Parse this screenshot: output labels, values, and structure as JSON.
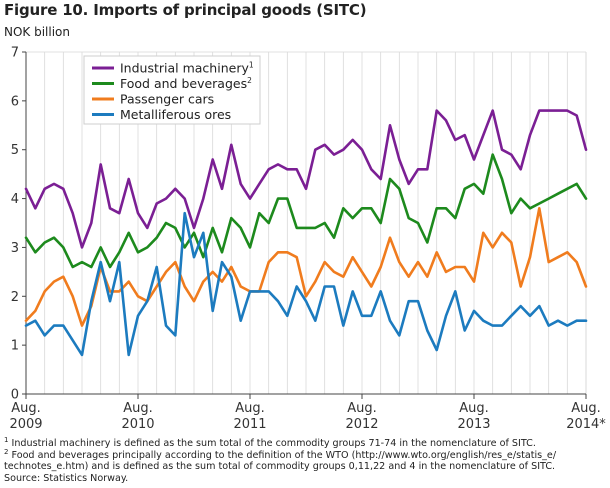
{
  "figure": {
    "title": "Figure 10. Imports of principal goods (SITC)",
    "unit_label": "NOK billion"
  },
  "chart_data": {
    "type": "line",
    "title": "Figure 10. Imports of principal goods (SITC)",
    "ylabel": "NOK billion",
    "xlabel": "",
    "ylim": [
      0,
      7
    ],
    "yticks": [
      0,
      1,
      2,
      3,
      4,
      5,
      6,
      7
    ],
    "grid": "vertical",
    "legend_position": "top-left",
    "x_count": 61,
    "x_ticks": [
      {
        "index": 0,
        "month": "Aug.",
        "year": "2009"
      },
      {
        "index": 12,
        "month": "Aug.",
        "year": "2010"
      },
      {
        "index": 24,
        "month": "Aug.",
        "year": "2011"
      },
      {
        "index": 36,
        "month": "Aug.",
        "year": "2012"
      },
      {
        "index": 48,
        "month": "Aug.",
        "year": "2013"
      },
      {
        "index": 60,
        "month": "Aug.",
        "year": "2014*"
      }
    ],
    "series": [
      {
        "name": "Industrial machinery",
        "footnote": "1",
        "color": "#7b1f94",
        "values": [
          4.2,
          3.8,
          4.2,
          4.3,
          4.2,
          3.7,
          3.0,
          3.5,
          4.7,
          3.8,
          3.7,
          4.4,
          3.7,
          3.4,
          3.9,
          4.0,
          4.2,
          4.0,
          3.4,
          4.0,
          4.8,
          4.2,
          5.1,
          4.3,
          4.0,
          4.3,
          4.6,
          4.7,
          4.6,
          4.6,
          4.2,
          5.0,
          5.1,
          4.9,
          5.0,
          5.2,
          5.0,
          4.6,
          4.4,
          5.5,
          4.8,
          4.3,
          4.6,
          4.6,
          5.8,
          5.6,
          5.2,
          5.3,
          4.8,
          5.3,
          5.8,
          5.0,
          4.9,
          4.6,
          5.3,
          5.8,
          5.8,
          5.8,
          5.8,
          5.7,
          5.0
        ]
      },
      {
        "name": "Food and beverages",
        "footnote": "2",
        "color": "#1d8a1d",
        "values": [
          3.2,
          2.9,
          3.1,
          3.2,
          3.0,
          2.6,
          2.7,
          2.6,
          3.0,
          2.6,
          2.9,
          3.3,
          2.9,
          3.0,
          3.2,
          3.5,
          3.4,
          3.0,
          3.3,
          2.8,
          3.4,
          2.9,
          3.6,
          3.4,
          3.0,
          3.7,
          3.5,
          4.0,
          4.0,
          3.4,
          3.4,
          3.4,
          3.5,
          3.2,
          3.8,
          3.6,
          3.8,
          3.8,
          3.5,
          4.4,
          4.2,
          3.6,
          3.5,
          3.1,
          3.8,
          3.8,
          3.6,
          4.2,
          4.3,
          4.1,
          4.9,
          4.4,
          3.7,
          4.0,
          3.8,
          3.9,
          4.0,
          4.1,
          4.2,
          4.3,
          4.0
        ]
      },
      {
        "name": "Passenger cars",
        "footnote": "",
        "color": "#f07c1e",
        "values": [
          1.5,
          1.7,
          2.1,
          2.3,
          2.4,
          2.0,
          1.4,
          1.8,
          2.6,
          2.1,
          2.1,
          2.3,
          2.0,
          1.9,
          2.2,
          2.5,
          2.7,
          2.2,
          1.9,
          2.3,
          2.5,
          2.3,
          2.6,
          2.2,
          2.1,
          2.1,
          2.7,
          2.9,
          2.9,
          2.8,
          2.0,
          2.3,
          2.7,
          2.5,
          2.4,
          2.8,
          2.5,
          2.2,
          2.6,
          3.2,
          2.7,
          2.4,
          2.7,
          2.4,
          2.9,
          2.5,
          2.6,
          2.6,
          2.3,
          3.3,
          3.0,
          3.3,
          3.1,
          2.2,
          2.8,
          3.8,
          2.7,
          2.8,
          2.9,
          2.7,
          2.2
        ]
      },
      {
        "name": "Metalliferous ores",
        "footnote": "",
        "color": "#1c7bbf",
        "values": [
          1.4,
          1.5,
          1.2,
          1.4,
          1.4,
          1.1,
          0.8,
          1.9,
          2.7,
          1.9,
          2.7,
          0.8,
          1.6,
          1.9,
          2.6,
          1.4,
          1.2,
          3.7,
          2.8,
          3.3,
          1.7,
          2.7,
          2.4,
          1.5,
          2.1,
          2.1,
          2.1,
          1.9,
          1.6,
          2.2,
          1.9,
          1.5,
          2.2,
          2.2,
          1.4,
          2.1,
          1.6,
          1.6,
          2.1,
          1.5,
          1.2,
          1.9,
          1.9,
          1.3,
          0.9,
          1.6,
          2.1,
          1.3,
          1.7,
          1.5,
          1.4,
          1.4,
          1.6,
          1.8,
          1.6,
          1.8,
          1.4,
          1.5,
          1.4,
          1.5,
          1.5
        ]
      }
    ]
  },
  "notes": {
    "fn1_marker": "1",
    "fn1_text": " Industrial machinery is defined as the sum total of the commodity groups 71-74 in the nomenclature of SITC.",
    "fn2_marker": "2",
    "fn2_text_line1": " Food and beverages principally according to the definition of the WTO (http://www.wto.org/english/res_e/statis_e/",
    "fn2_text_line2": "technotes_e.htm) and is defined as the sum total of commodity groups 0,11,22 and 4 in the nomenclature of SITC.",
    "source": "Source: Statistics Norway."
  }
}
